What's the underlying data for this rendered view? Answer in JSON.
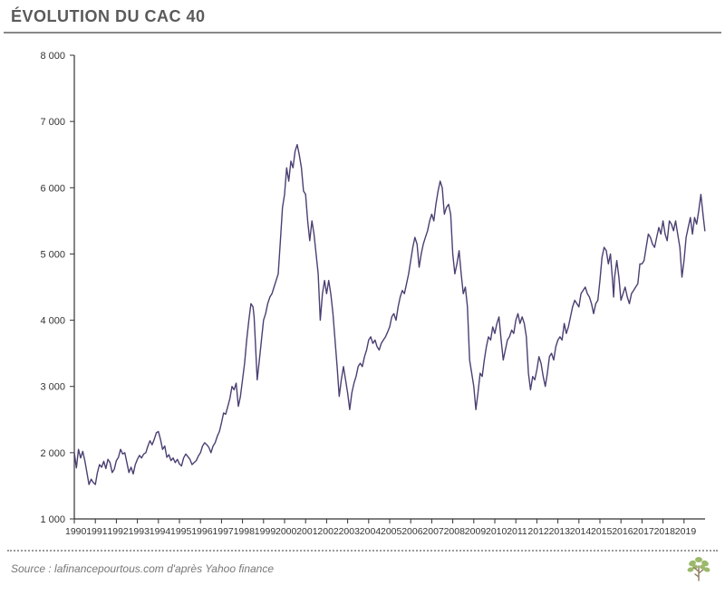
{
  "title": "ÉVOLUTION DU CAC 40",
  "source": "Source : lafinancepourtous.com d'après Yahoo finance",
  "chart": {
    "type": "line",
    "line_color": "#4b3f72",
    "line_width": 1.4,
    "background_color": "#ffffff",
    "axis_color": "#333333",
    "tick_font_size": 11,
    "tick_color": "#333333",
    "ylim": [
      1000,
      8000
    ],
    "ytick_step": 1000,
    "yticks": [
      "1 000",
      "2 000",
      "3 000",
      "4 000",
      "5 000",
      "6 000",
      "7 000",
      "8 000"
    ],
    "xlim": [
      1990,
      2020
    ],
    "xticks": [
      "1990",
      "1991",
      "1992",
      "1993",
      "1994",
      "1995",
      "1996",
      "1997",
      "1998",
      "1999",
      "2000",
      "2001",
      "2002",
      "2003",
      "2004",
      "2005",
      "2006",
      "2007",
      "2008",
      "2009",
      "2010",
      "2011",
      "2012",
      "2013",
      "2014",
      "2015",
      "2016",
      "2017",
      "2018",
      "2019"
    ],
    "series": [
      {
        "x": 1990.0,
        "y": 2000
      },
      {
        "x": 1990.1,
        "y": 1770
      },
      {
        "x": 1990.2,
        "y": 2050
      },
      {
        "x": 1990.3,
        "y": 1920
      },
      {
        "x": 1990.4,
        "y": 2020
      },
      {
        "x": 1990.5,
        "y": 1880
      },
      {
        "x": 1990.6,
        "y": 1700
      },
      {
        "x": 1990.7,
        "y": 1520
      },
      {
        "x": 1990.8,
        "y": 1600
      },
      {
        "x": 1990.9,
        "y": 1550
      },
      {
        "x": 1991.0,
        "y": 1520
      },
      {
        "x": 1991.1,
        "y": 1700
      },
      {
        "x": 1991.2,
        "y": 1820
      },
      {
        "x": 1991.3,
        "y": 1780
      },
      {
        "x": 1991.4,
        "y": 1870
      },
      {
        "x": 1991.5,
        "y": 1760
      },
      {
        "x": 1991.6,
        "y": 1900
      },
      {
        "x": 1991.7,
        "y": 1850
      },
      {
        "x": 1991.8,
        "y": 1700
      },
      {
        "x": 1991.9,
        "y": 1750
      },
      {
        "x": 1992.0,
        "y": 1880
      },
      {
        "x": 1992.1,
        "y": 1930
      },
      {
        "x": 1992.2,
        "y": 2050
      },
      {
        "x": 1992.3,
        "y": 1980
      },
      {
        "x": 1992.4,
        "y": 2000
      },
      {
        "x": 1992.5,
        "y": 1850
      },
      {
        "x": 1992.6,
        "y": 1700
      },
      {
        "x": 1992.7,
        "y": 1780
      },
      {
        "x": 1992.8,
        "y": 1680
      },
      {
        "x": 1992.9,
        "y": 1820
      },
      {
        "x": 1993.0,
        "y": 1900
      },
      {
        "x": 1993.1,
        "y": 1960
      },
      {
        "x": 1993.2,
        "y": 1920
      },
      {
        "x": 1993.3,
        "y": 1980
      },
      {
        "x": 1993.4,
        "y": 2000
      },
      {
        "x": 1993.5,
        "y": 2100
      },
      {
        "x": 1993.6,
        "y": 2180
      },
      {
        "x": 1993.7,
        "y": 2120
      },
      {
        "x": 1993.8,
        "y": 2200
      },
      {
        "x": 1993.9,
        "y": 2300
      },
      {
        "x": 1994.0,
        "y": 2320
      },
      {
        "x": 1994.1,
        "y": 2200
      },
      {
        "x": 1994.2,
        "y": 2050
      },
      {
        "x": 1994.3,
        "y": 2100
      },
      {
        "x": 1994.4,
        "y": 1930
      },
      {
        "x": 1994.5,
        "y": 1970
      },
      {
        "x": 1994.6,
        "y": 1880
      },
      {
        "x": 1994.7,
        "y": 1920
      },
      {
        "x": 1994.8,
        "y": 1850
      },
      {
        "x": 1994.9,
        "y": 1900
      },
      {
        "x": 1995.0,
        "y": 1830
      },
      {
        "x": 1995.1,
        "y": 1800
      },
      {
        "x": 1995.2,
        "y": 1920
      },
      {
        "x": 1995.3,
        "y": 1980
      },
      {
        "x": 1995.4,
        "y": 1940
      },
      {
        "x": 1995.5,
        "y": 1900
      },
      {
        "x": 1995.6,
        "y": 1820
      },
      {
        "x": 1995.7,
        "y": 1850
      },
      {
        "x": 1995.8,
        "y": 1880
      },
      {
        "x": 1995.9,
        "y": 1950
      },
      {
        "x": 1996.0,
        "y": 2000
      },
      {
        "x": 1996.1,
        "y": 2100
      },
      {
        "x": 1996.2,
        "y": 2150
      },
      {
        "x": 1996.3,
        "y": 2120
      },
      {
        "x": 1996.4,
        "y": 2080
      },
      {
        "x": 1996.5,
        "y": 2000
      },
      {
        "x": 1996.6,
        "y": 2100
      },
      {
        "x": 1996.7,
        "y": 2150
      },
      {
        "x": 1996.8,
        "y": 2250
      },
      {
        "x": 1996.9,
        "y": 2320
      },
      {
        "x": 1997.0,
        "y": 2450
      },
      {
        "x": 1997.1,
        "y": 2600
      },
      {
        "x": 1997.2,
        "y": 2580
      },
      {
        "x": 1997.3,
        "y": 2700
      },
      {
        "x": 1997.4,
        "y": 2820
      },
      {
        "x": 1997.5,
        "y": 3000
      },
      {
        "x": 1997.6,
        "y": 2950
      },
      {
        "x": 1997.7,
        "y": 3050
      },
      {
        "x": 1997.8,
        "y": 2700
      },
      {
        "x": 1997.9,
        "y": 2850
      },
      {
        "x": 1998.0,
        "y": 3100
      },
      {
        "x": 1998.1,
        "y": 3350
      },
      {
        "x": 1998.2,
        "y": 3700
      },
      {
        "x": 1998.3,
        "y": 4000
      },
      {
        "x": 1998.4,
        "y": 4250
      },
      {
        "x": 1998.5,
        "y": 4200
      },
      {
        "x": 1998.55,
        "y": 4050
      },
      {
        "x": 1998.6,
        "y": 3750
      },
      {
        "x": 1998.7,
        "y": 3100
      },
      {
        "x": 1998.8,
        "y": 3400
      },
      {
        "x": 1998.9,
        "y": 3700
      },
      {
        "x": 1999.0,
        "y": 4000
      },
      {
        "x": 1999.1,
        "y": 4100
      },
      {
        "x": 1999.2,
        "y": 4250
      },
      {
        "x": 1999.3,
        "y": 4350
      },
      {
        "x": 1999.4,
        "y": 4400
      },
      {
        "x": 1999.5,
        "y": 4500
      },
      {
        "x": 1999.6,
        "y": 4600
      },
      {
        "x": 1999.7,
        "y": 4700
      },
      {
        "x": 1999.8,
        "y": 5200
      },
      {
        "x": 1999.9,
        "y": 5700
      },
      {
        "x": 2000.0,
        "y": 5900
      },
      {
        "x": 2000.1,
        "y": 6300
      },
      {
        "x": 2000.2,
        "y": 6100
      },
      {
        "x": 2000.3,
        "y": 6400
      },
      {
        "x": 2000.4,
        "y": 6300
      },
      {
        "x": 2000.5,
        "y": 6550
      },
      {
        "x": 2000.6,
        "y": 6650
      },
      {
        "x": 2000.7,
        "y": 6500
      },
      {
        "x": 2000.8,
        "y": 6300
      },
      {
        "x": 2000.9,
        "y": 5950
      },
      {
        "x": 2001.0,
        "y": 5900
      },
      {
        "x": 2001.1,
        "y": 5500
      },
      {
        "x": 2001.2,
        "y": 5200
      },
      {
        "x": 2001.3,
        "y": 5500
      },
      {
        "x": 2001.4,
        "y": 5300
      },
      {
        "x": 2001.5,
        "y": 5000
      },
      {
        "x": 2001.6,
        "y": 4700
      },
      {
        "x": 2001.7,
        "y": 4000
      },
      {
        "x": 2001.8,
        "y": 4400
      },
      {
        "x": 2001.9,
        "y": 4600
      },
      {
        "x": 2002.0,
        "y": 4400
      },
      {
        "x": 2002.1,
        "y": 4600
      },
      {
        "x": 2002.2,
        "y": 4400
      },
      {
        "x": 2002.3,
        "y": 4100
      },
      {
        "x": 2002.4,
        "y": 3700
      },
      {
        "x": 2002.5,
        "y": 3300
      },
      {
        "x": 2002.6,
        "y": 2850
      },
      {
        "x": 2002.7,
        "y": 3100
      },
      {
        "x": 2002.8,
        "y": 3300
      },
      {
        "x": 2002.9,
        "y": 3100
      },
      {
        "x": 2003.0,
        "y": 2900
      },
      {
        "x": 2003.1,
        "y": 2650
      },
      {
        "x": 2003.2,
        "y": 2900
      },
      {
        "x": 2003.3,
        "y": 3050
      },
      {
        "x": 2003.4,
        "y": 3150
      },
      {
        "x": 2003.5,
        "y": 3300
      },
      {
        "x": 2003.6,
        "y": 3350
      },
      {
        "x": 2003.7,
        "y": 3300
      },
      {
        "x": 2003.8,
        "y": 3450
      },
      {
        "x": 2003.9,
        "y": 3550
      },
      {
        "x": 2004.0,
        "y": 3700
      },
      {
        "x": 2004.1,
        "y": 3750
      },
      {
        "x": 2004.2,
        "y": 3650
      },
      {
        "x": 2004.3,
        "y": 3700
      },
      {
        "x": 2004.4,
        "y": 3600
      },
      {
        "x": 2004.5,
        "y": 3550
      },
      {
        "x": 2004.6,
        "y": 3650
      },
      {
        "x": 2004.7,
        "y": 3700
      },
      {
        "x": 2004.8,
        "y": 3750
      },
      {
        "x": 2004.9,
        "y": 3820
      },
      {
        "x": 2005.0,
        "y": 3900
      },
      {
        "x": 2005.1,
        "y": 4050
      },
      {
        "x": 2005.2,
        "y": 4100
      },
      {
        "x": 2005.3,
        "y": 4000
      },
      {
        "x": 2005.4,
        "y": 4200
      },
      {
        "x": 2005.5,
        "y": 4350
      },
      {
        "x": 2005.6,
        "y": 4450
      },
      {
        "x": 2005.7,
        "y": 4400
      },
      {
        "x": 2005.8,
        "y": 4550
      },
      {
        "x": 2005.9,
        "y": 4700
      },
      {
        "x": 2006.0,
        "y": 4900
      },
      {
        "x": 2006.1,
        "y": 5100
      },
      {
        "x": 2006.2,
        "y": 5250
      },
      {
        "x": 2006.3,
        "y": 5150
      },
      {
        "x": 2006.4,
        "y": 4800
      },
      {
        "x": 2006.5,
        "y": 5000
      },
      {
        "x": 2006.6,
        "y": 5150
      },
      {
        "x": 2006.7,
        "y": 5250
      },
      {
        "x": 2006.8,
        "y": 5350
      },
      {
        "x": 2006.9,
        "y": 5500
      },
      {
        "x": 2007.0,
        "y": 5600
      },
      {
        "x": 2007.1,
        "y": 5500
      },
      {
        "x": 2007.2,
        "y": 5750
      },
      {
        "x": 2007.3,
        "y": 5950
      },
      {
        "x": 2007.4,
        "y": 6100
      },
      {
        "x": 2007.5,
        "y": 6000
      },
      {
        "x": 2007.6,
        "y": 5600
      },
      {
        "x": 2007.7,
        "y": 5700
      },
      {
        "x": 2007.8,
        "y": 5750
      },
      {
        "x": 2007.9,
        "y": 5600
      },
      {
        "x": 2008.0,
        "y": 5000
      },
      {
        "x": 2008.1,
        "y": 4700
      },
      {
        "x": 2008.2,
        "y": 4850
      },
      {
        "x": 2008.3,
        "y": 5050
      },
      {
        "x": 2008.4,
        "y": 4700
      },
      {
        "x": 2008.5,
        "y": 4400
      },
      {
        "x": 2008.6,
        "y": 4500
      },
      {
        "x": 2008.7,
        "y": 4200
      },
      {
        "x": 2008.8,
        "y": 3400
      },
      {
        "x": 2008.9,
        "y": 3200
      },
      {
        "x": 2009.0,
        "y": 3000
      },
      {
        "x": 2009.1,
        "y": 2650
      },
      {
        "x": 2009.2,
        "y": 2900
      },
      {
        "x": 2009.3,
        "y": 3200
      },
      {
        "x": 2009.4,
        "y": 3150
      },
      {
        "x": 2009.5,
        "y": 3400
      },
      {
        "x": 2009.6,
        "y": 3600
      },
      {
        "x": 2009.7,
        "y": 3750
      },
      {
        "x": 2009.8,
        "y": 3700
      },
      {
        "x": 2009.9,
        "y": 3900
      },
      {
        "x": 2010.0,
        "y": 3800
      },
      {
        "x": 2010.1,
        "y": 3950
      },
      {
        "x": 2010.2,
        "y": 4050
      },
      {
        "x": 2010.3,
        "y": 3700
      },
      {
        "x": 2010.4,
        "y": 3400
      },
      {
        "x": 2010.5,
        "y": 3550
      },
      {
        "x": 2010.6,
        "y": 3700
      },
      {
        "x": 2010.7,
        "y": 3750
      },
      {
        "x": 2010.8,
        "y": 3850
      },
      {
        "x": 2010.9,
        "y": 3800
      },
      {
        "x": 2011.0,
        "y": 4000
      },
      {
        "x": 2011.1,
        "y": 4100
      },
      {
        "x": 2011.2,
        "y": 3950
      },
      {
        "x": 2011.3,
        "y": 4050
      },
      {
        "x": 2011.4,
        "y": 3950
      },
      {
        "x": 2011.5,
        "y": 3750
      },
      {
        "x": 2011.6,
        "y": 3200
      },
      {
        "x": 2011.7,
        "y": 2950
      },
      {
        "x": 2011.8,
        "y": 3150
      },
      {
        "x": 2011.9,
        "y": 3100
      },
      {
        "x": 2012.0,
        "y": 3250
      },
      {
        "x": 2012.1,
        "y": 3450
      },
      {
        "x": 2012.2,
        "y": 3350
      },
      {
        "x": 2012.3,
        "y": 3150
      },
      {
        "x": 2012.4,
        "y": 3000
      },
      {
        "x": 2012.5,
        "y": 3200
      },
      {
        "x": 2012.6,
        "y": 3450
      },
      {
        "x": 2012.7,
        "y": 3500
      },
      {
        "x": 2012.8,
        "y": 3400
      },
      {
        "x": 2012.9,
        "y": 3600
      },
      {
        "x": 2013.0,
        "y": 3700
      },
      {
        "x": 2013.1,
        "y": 3750
      },
      {
        "x": 2013.2,
        "y": 3700
      },
      {
        "x": 2013.3,
        "y": 3950
      },
      {
        "x": 2013.4,
        "y": 3800
      },
      {
        "x": 2013.5,
        "y": 3900
      },
      {
        "x": 2013.6,
        "y": 4050
      },
      {
        "x": 2013.7,
        "y": 4200
      },
      {
        "x": 2013.8,
        "y": 4300
      },
      {
        "x": 2013.9,
        "y": 4250
      },
      {
        "x": 2014.0,
        "y": 4200
      },
      {
        "x": 2014.1,
        "y": 4400
      },
      {
        "x": 2014.2,
        "y": 4450
      },
      {
        "x": 2014.3,
        "y": 4500
      },
      {
        "x": 2014.4,
        "y": 4400
      },
      {
        "x": 2014.5,
        "y": 4350
      },
      {
        "x": 2014.6,
        "y": 4250
      },
      {
        "x": 2014.7,
        "y": 4100
      },
      {
        "x": 2014.8,
        "y": 4250
      },
      {
        "x": 2014.9,
        "y": 4300
      },
      {
        "x": 2015.0,
        "y": 4600
      },
      {
        "x": 2015.1,
        "y": 4950
      },
      {
        "x": 2015.2,
        "y": 5100
      },
      {
        "x": 2015.3,
        "y": 5050
      },
      {
        "x": 2015.4,
        "y": 4850
      },
      {
        "x": 2015.5,
        "y": 5000
      },
      {
        "x": 2015.6,
        "y": 4600
      },
      {
        "x": 2015.65,
        "y": 4350
      },
      {
        "x": 2015.7,
        "y": 4650
      },
      {
        "x": 2015.8,
        "y": 4900
      },
      {
        "x": 2015.9,
        "y": 4650
      },
      {
        "x": 2016.0,
        "y": 4300
      },
      {
        "x": 2016.1,
        "y": 4400
      },
      {
        "x": 2016.2,
        "y": 4500
      },
      {
        "x": 2016.3,
        "y": 4350
      },
      {
        "x": 2016.4,
        "y": 4250
      },
      {
        "x": 2016.5,
        "y": 4400
      },
      {
        "x": 2016.6,
        "y": 4450
      },
      {
        "x": 2016.7,
        "y": 4500
      },
      {
        "x": 2016.8,
        "y": 4550
      },
      {
        "x": 2016.9,
        "y": 4850
      },
      {
        "x": 2017.0,
        "y": 4850
      },
      {
        "x": 2017.1,
        "y": 4900
      },
      {
        "x": 2017.2,
        "y": 5100
      },
      {
        "x": 2017.3,
        "y": 5300
      },
      {
        "x": 2017.4,
        "y": 5250
      },
      {
        "x": 2017.5,
        "y": 5150
      },
      {
        "x": 2017.6,
        "y": 5100
      },
      {
        "x": 2017.7,
        "y": 5250
      },
      {
        "x": 2017.8,
        "y": 5400
      },
      {
        "x": 2017.9,
        "y": 5300
      },
      {
        "x": 2018.0,
        "y": 5500
      },
      {
        "x": 2018.1,
        "y": 5300
      },
      {
        "x": 2018.2,
        "y": 5200
      },
      {
        "x": 2018.3,
        "y": 5500
      },
      {
        "x": 2018.4,
        "y": 5450
      },
      {
        "x": 2018.5,
        "y": 5350
      },
      {
        "x": 2018.6,
        "y": 5500
      },
      {
        "x": 2018.7,
        "y": 5300
      },
      {
        "x": 2018.8,
        "y": 5100
      },
      {
        "x": 2018.9,
        "y": 4650
      },
      {
        "x": 2019.0,
        "y": 4900
      },
      {
        "x": 2019.1,
        "y": 5250
      },
      {
        "x": 2019.2,
        "y": 5400
      },
      {
        "x": 2019.3,
        "y": 5550
      },
      {
        "x": 2019.4,
        "y": 5300
      },
      {
        "x": 2019.5,
        "y": 5550
      },
      {
        "x": 2019.6,
        "y": 5450
      },
      {
        "x": 2019.7,
        "y": 5650
      },
      {
        "x": 2019.8,
        "y": 5900
      },
      {
        "x": 2019.9,
        "y": 5600
      },
      {
        "x": 2019.99,
        "y": 5350
      }
    ]
  },
  "colors": {
    "title": "#5a5a5a",
    "title_underline": "#888888",
    "source_text": "#777777",
    "logo_leaf": "#9bb96b",
    "logo_trunk": "#8a7a5a"
  }
}
